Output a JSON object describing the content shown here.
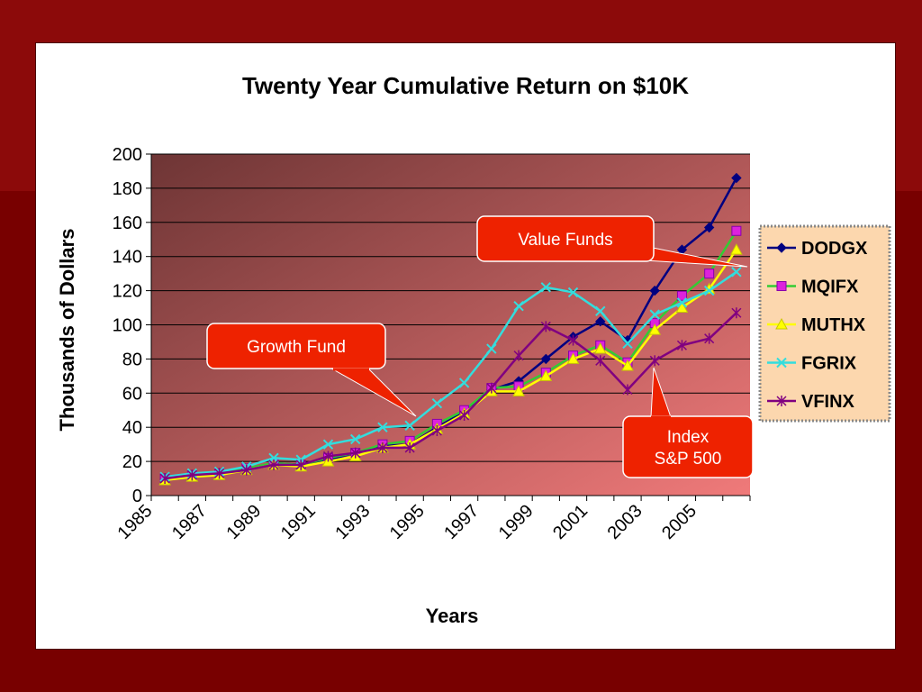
{
  "chart_data": {
    "type": "line",
    "title": "Twenty Year Cumulative Return on $10K",
    "xlabel": "Years",
    "ylabel": "Thousands of Dollars",
    "ylim": [
      0,
      200
    ],
    "y_ticks": [
      "0",
      "20",
      "40",
      "60",
      "80",
      "100",
      "120",
      "140",
      "160",
      "180",
      "200"
    ],
    "x_tick_labels": [
      "1985",
      "1987",
      "1989",
      "1991",
      "1993",
      "1995",
      "1997",
      "1999",
      "2001",
      "2003",
      "2005"
    ],
    "x": [
      1985,
      1986,
      1987,
      1988,
      1989,
      1990,
      1991,
      1992,
      1993,
      1994,
      1995,
      1996,
      1997,
      1998,
      1999,
      2000,
      2001,
      2002,
      2003,
      2004,
      2005,
      2006
    ],
    "grid": true,
    "legend": "right",
    "series": [
      {
        "name": "DODGX",
        "color": "#000080",
        "marker": "diamond",
        "values": [
          10,
          12,
          13,
          15,
          19,
          18,
          21,
          25,
          29,
          30,
          40,
          49,
          62,
          67,
          80,
          93,
          102,
          91,
          120,
          144,
          157,
          186
        ]
      },
      {
        "name": "MQIFX",
        "color": "#33cc33",
        "marker": "square",
        "values": [
          10,
          12,
          13,
          16,
          19,
          18,
          22,
          25,
          30,
          32,
          42,
          50,
          63,
          64,
          72,
          82,
          88,
          78,
          101,
          117,
          130,
          155
        ]
      },
      {
        "name": "MUTHX",
        "color": "#ffff00",
        "marker": "triangle",
        "values": [
          9,
          11,
          12,
          15,
          18,
          17,
          20,
          23,
          28,
          30,
          39,
          48,
          61,
          61,
          70,
          80,
          86,
          76,
          97,
          110,
          121,
          144
        ]
      },
      {
        "name": "FGRIX",
        "color": "#33dddd",
        "marker": "x",
        "values": [
          11,
          13,
          14,
          17,
          22,
          21,
          30,
          33,
          40,
          41,
          54,
          66,
          86,
          111,
          122,
          119,
          108,
          89,
          106,
          113,
          120,
          131
        ]
      },
      {
        "name": "VFINX",
        "color": "#800080",
        "marker": "star",
        "values": [
          10,
          12,
          13,
          15,
          18,
          18,
          23,
          25,
          28,
          28,
          38,
          47,
          63,
          82,
          99,
          91,
          79,
          62,
          79,
          88,
          92,
          107
        ]
      }
    ],
    "annotations": [
      {
        "text": "Value Funds"
      },
      {
        "text": "Growth Fund"
      },
      {
        "text_lines": [
          "Index",
          "S&P 500"
        ]
      }
    ]
  },
  "colors": {
    "slide_background": "#7a0000",
    "plot_gradient_start": "#6e3535",
    "plot_gradient_end": "#f07a7a",
    "callout_fill": "#ee2200",
    "legend_fill": "#fcd7ae"
  }
}
